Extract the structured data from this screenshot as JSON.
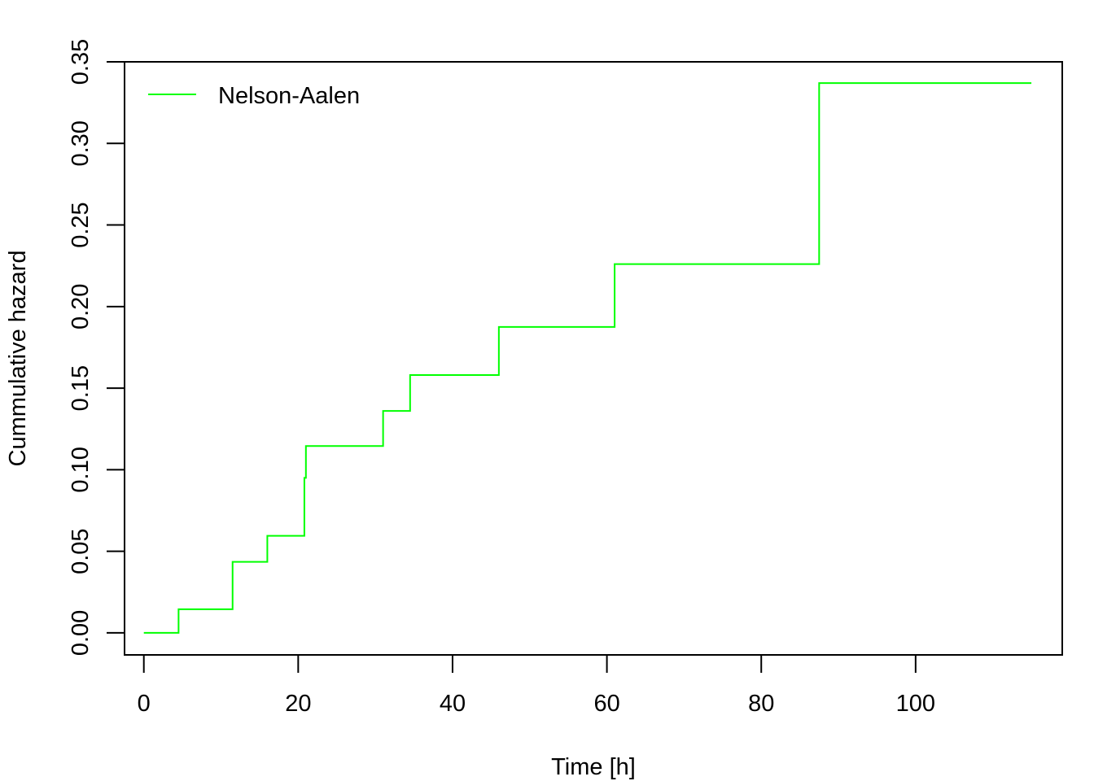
{
  "chart_data": {
    "type": "line",
    "title": "",
    "xlabel": "Time [h]",
    "ylabel": "Cummulative hazard",
    "xlim": [
      -2.5,
      119
    ],
    "ylim": [
      -0.0135,
      0.35
    ],
    "x_ticks": [
      0,
      20,
      40,
      60,
      80,
      100
    ],
    "x_tick_labels": [
      "0",
      "20",
      "40",
      "60",
      "80",
      "100"
    ],
    "y_ticks": [
      0.0,
      0.05,
      0.1,
      0.15,
      0.2,
      0.25,
      0.3,
      0.35
    ],
    "y_tick_labels": [
      "0.00",
      "0.05",
      "0.10",
      "0.15",
      "0.20",
      "0.25",
      "0.30",
      "0.35"
    ],
    "grid": false,
    "legend": {
      "position": "top-left",
      "entries": [
        "Nelson-Aalen"
      ]
    },
    "series": [
      {
        "name": "Nelson-Aalen",
        "color": "#00ff00",
        "step": true,
        "x": [
          0,
          4.5,
          11.5,
          16.0,
          20.8,
          21.0,
          31.0,
          34.5,
          46.0,
          61.0,
          87.5,
          115.0
        ],
        "y": [
          0.0,
          0.0145,
          0.0435,
          0.0595,
          0.095,
          0.1145,
          0.136,
          0.158,
          0.1875,
          0.226,
          0.337,
          0.337
        ]
      }
    ]
  }
}
